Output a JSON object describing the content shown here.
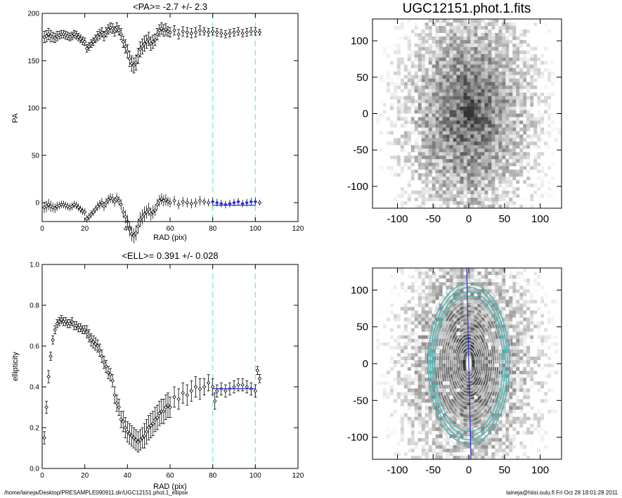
{
  "footer": {
    "path": "/home/laineja/Desktop/PRESAMPLE090911.dir/UGC12151.phot.1_ellipse",
    "user_date": "laineja@hiisi.oulu.fi  Fri Oct 28 18:01:28 2011"
  },
  "colors": {
    "series": "#000000",
    "fit": "#2a2fd4",
    "guides": "#8ee4e4",
    "contours": "#d8d8d8",
    "contour_accent": "#5bb6b6"
  },
  "chart_data": [
    {
      "id": "pa",
      "type": "scatter",
      "title": "<PA>=  -2.7 +/-   2.3",
      "xlabel": "RAD (pix)",
      "ylabel": "PA",
      "xlim": [
        0,
        120
      ],
      "ylim": [
        -20,
        200
      ],
      "xticks": [
        "0",
        "20",
        "40",
        "60",
        "80",
        "100",
        "120"
      ],
      "yticks": [
        "0",
        "50",
        "100",
        "150",
        "200"
      ],
      "vlines": [
        80,
        100
      ],
      "fit": {
        "x": [
          80,
          100
        ],
        "y": -2.7
      },
      "series": [
        {
          "x": [
            1,
            2,
            3,
            4,
            5,
            6,
            7,
            8,
            9,
            10,
            11,
            12,
            13,
            14,
            15,
            16,
            17,
            18,
            19,
            20,
            21,
            22,
            23,
            24,
            25,
            26,
            27,
            28,
            29,
            30,
            31,
            32,
            33,
            34,
            35,
            36,
            37,
            38,
            39,
            40,
            41,
            42,
            43,
            44,
            45,
            46,
            47,
            48,
            49,
            50,
            51,
            52,
            53,
            54,
            55,
            56,
            57,
            58,
            59,
            60,
            62,
            64,
            66,
            68,
            70,
            72,
            74,
            76,
            78,
            80,
            82,
            84,
            86,
            88,
            90,
            92,
            94,
            96,
            98,
            100,
            102
          ],
          "y": [
            175,
            176,
            178,
            176,
            175,
            174,
            176,
            177,
            178,
            178,
            177,
            176,
            175,
            176,
            178,
            177,
            175,
            173,
            171,
            170,
            163,
            165,
            168,
            170,
            173,
            176,
            178,
            180,
            176,
            180,
            183,
            185,
            184,
            181,
            185,
            182,
            178,
            170,
            165,
            160,
            152,
            147,
            145,
            148,
            155,
            162,
            165,
            168,
            170,
            173,
            168,
            170,
            172,
            178,
            182,
            184,
            182,
            183,
            181,
            180,
            182,
            178,
            181,
            180,
            179,
            180,
            182,
            181,
            180,
            181,
            180,
            179,
            178,
            179,
            180,
            181,
            179,
            180,
            181,
            181,
            180
          ],
          "err": [
            6,
            6,
            6,
            6,
            5,
            5,
            5,
            4,
            4,
            4,
            4,
            4,
            4,
            4,
            4,
            4,
            4,
            4,
            4,
            4,
            4,
            4,
            4,
            4,
            4,
            5,
            5,
            5,
            5,
            5,
            5,
            5,
            5,
            5,
            5,
            5,
            6,
            6,
            7,
            7,
            8,
            8,
            8,
            8,
            8,
            8,
            8,
            8,
            7,
            7,
            7,
            7,
            6,
            6,
            6,
            6,
            6,
            6,
            5,
            5,
            5,
            5,
            5,
            5,
            5,
            5,
            5,
            4,
            4,
            4,
            4,
            4,
            4,
            4,
            4,
            4,
            4,
            4,
            4,
            4,
            3
          ]
        }
      ]
    },
    {
      "id": "ell",
      "type": "scatter",
      "title": "<ELL>= 0.391 +/-  0.028",
      "xlabel": "RAD (pix)",
      "ylabel": "ellipticity",
      "xlim": [
        0,
        120
      ],
      "ylim": [
        0,
        1
      ],
      "xticks": [
        "0",
        "20",
        "40",
        "60",
        "80",
        "100",
        "120"
      ],
      "yticks": [
        "0.0",
        "0.2",
        "0.4",
        "0.6",
        "0.8",
        "1.0"
      ],
      "vlines": [
        80,
        100
      ],
      "fit": {
        "x": [
          80,
          100
        ],
        "y": 0.391
      },
      "series": [
        {
          "x": [
            1,
            2,
            3,
            4,
            5,
            6,
            7,
            8,
            9,
            10,
            11,
            12,
            13,
            14,
            15,
            16,
            17,
            18,
            19,
            20,
            21,
            22,
            23,
            24,
            25,
            26,
            27,
            28,
            29,
            30,
            31,
            32,
            33,
            34,
            35,
            36,
            37,
            38,
            39,
            40,
            41,
            42,
            43,
            44,
            45,
            46,
            47,
            48,
            49,
            50,
            51,
            52,
            53,
            54,
            55,
            56,
            57,
            58,
            59,
            60,
            62,
            64,
            66,
            68,
            70,
            72,
            74,
            76,
            78,
            80,
            81,
            82,
            84,
            86,
            88,
            90,
            92,
            94,
            96,
            98,
            100,
            101,
            102
          ],
          "y": [
            0.15,
            0.3,
            0.45,
            0.55,
            0.63,
            0.68,
            0.71,
            0.72,
            0.73,
            0.72,
            0.72,
            0.71,
            0.71,
            0.72,
            0.7,
            0.7,
            0.69,
            0.69,
            0.68,
            0.68,
            0.67,
            0.65,
            0.63,
            0.62,
            0.61,
            0.6,
            0.58,
            0.55,
            0.52,
            0.5,
            0.47,
            0.46,
            0.43,
            0.36,
            0.32,
            0.3,
            0.24,
            0.23,
            0.2,
            0.18,
            0.17,
            0.16,
            0.15,
            0.14,
            0.13,
            0.14,
            0.15,
            0.16,
            0.18,
            0.2,
            0.21,
            0.22,
            0.24,
            0.25,
            0.27,
            0.28,
            0.28,
            0.3,
            0.31,
            0.3,
            0.35,
            0.34,
            0.37,
            0.36,
            0.38,
            0.4,
            0.39,
            0.4,
            0.42,
            0.4,
            0.33,
            0.38,
            0.39,
            0.38,
            0.39,
            0.4,
            0.41,
            0.41,
            0.4,
            0.39,
            0.38,
            0.48,
            0.44
          ],
          "err": [
            0.03,
            0.03,
            0.03,
            0.02,
            0.02,
            0.02,
            0.02,
            0.02,
            0.02,
            0.02,
            0.02,
            0.02,
            0.02,
            0.02,
            0.02,
            0.02,
            0.02,
            0.02,
            0.02,
            0.02,
            0.03,
            0.03,
            0.03,
            0.03,
            0.03,
            0.03,
            0.03,
            0.03,
            0.03,
            0.03,
            0.03,
            0.03,
            0.03,
            0.04,
            0.04,
            0.04,
            0.04,
            0.05,
            0.05,
            0.05,
            0.05,
            0.05,
            0.05,
            0.05,
            0.05,
            0.05,
            0.05,
            0.06,
            0.06,
            0.06,
            0.06,
            0.06,
            0.06,
            0.06,
            0.06,
            0.06,
            0.06,
            0.06,
            0.06,
            0.05,
            0.05,
            0.05,
            0.05,
            0.05,
            0.05,
            0.05,
            0.05,
            0.04,
            0.04,
            0.04,
            0.04,
            0.03,
            0.03,
            0.03,
            0.03,
            0.03,
            0.03,
            0.03,
            0.03,
            0.03,
            0.03,
            0.02,
            0.02
          ]
        }
      ]
    },
    {
      "id": "img1",
      "type": "heatmap",
      "title": "UGC12151.phot.1.fits",
      "xlim": [
        -135,
        130
      ],
      "ylim": [
        -130,
        130
      ],
      "xticks": [
        "-100",
        "-50",
        "0",
        "50",
        "100"
      ],
      "yticks": [
        "100",
        "50",
        "0",
        "-50",
        "-100"
      ],
      "colormap": "grayscale-inverted",
      "galaxy": {
        "center": [
          0,
          0
        ],
        "axis_ratio": 0.61,
        "position_angle": -2.7
      }
    },
    {
      "id": "img2",
      "type": "heatmap",
      "title": "",
      "xlim": [
        -135,
        130
      ],
      "ylim": [
        -130,
        130
      ],
      "xticks": [
        "-100",
        "-50",
        "0",
        "50",
        "100"
      ],
      "yticks": [
        "100",
        "50",
        "0",
        "-50",
        "-100"
      ],
      "colormap": "grayscale-inverted",
      "isophote_radii": [
        4,
        7,
        10,
        13,
        16,
        20,
        24,
        28,
        32,
        36,
        40,
        45,
        50,
        55,
        60,
        65,
        70,
        75,
        80,
        85,
        90,
        95,
        100
      ]
    }
  ]
}
